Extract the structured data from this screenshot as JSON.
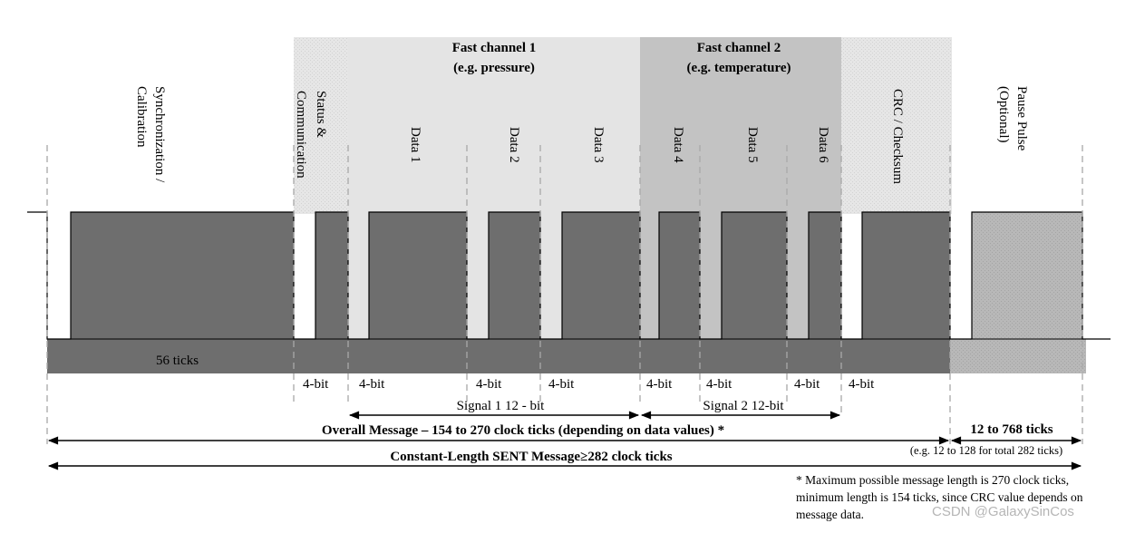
{
  "colors": {
    "pulse": "#6e6e6e",
    "header_light": "#e4e4e4",
    "header_dark": "#c3c3c3",
    "pause_fill": "#b5b5b5",
    "line": "#000000",
    "dash": "#a8a8a8"
  },
  "header": {
    "fast_channel_1": {
      "line1": "Fast channel 1",
      "line2": "(e.g. pressure)"
    },
    "fast_channel_2": {
      "line1": "Fast channel 2",
      "line2": "(e.g. temperature)"
    }
  },
  "segments": {
    "sync": {
      "line1": "Synchronization /",
      "line2": "Calibration",
      "ticks": "56 ticks"
    },
    "status": {
      "line1": "Status &",
      "line2": "Communication"
    },
    "data1": "Data 1",
    "data2": "Data 2",
    "data3": "Data 3",
    "data4": "Data 4",
    "data5": "Data 5",
    "data6": "Data 6",
    "crc": "CRC / Checksum",
    "pause": {
      "line1": "Pause Pulse",
      "line2": "(Optional)"
    }
  },
  "bit_label": "4-bit",
  "signals": {
    "signal1": "Signal 1 12 - bit",
    "signal2": "Signal 2 12-bit"
  },
  "overall_message": "Overall Message –  154 to 270 clock ticks (depending on data values) *",
  "pause_ticks": "12 to 768 ticks",
  "pause_note": "(e.g. 12 to 128 for total 282 ticks)",
  "constant_length": "Constant-Length SENT Message≥282 clock ticks",
  "footnote": "* Maximum possible message length is 270 clock ticks, minimum length is 154 ticks, since CRC value depends on message data.",
  "watermark": "CSDN @GalaxySinCos"
}
